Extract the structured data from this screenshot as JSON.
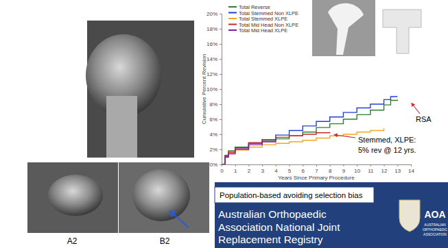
{
  "chart_data": {
    "type": "line",
    "x_label": "Years Since Primary Procedure",
    "y_label": "Cumulative Percent Revision",
    "x": [
      0,
      0.25,
      0.5,
      1,
      2,
      3,
      4,
      5,
      6,
      7,
      8,
      9,
      10,
      11,
      12,
      12.5,
      13
    ],
    "series": [
      {
        "name": "Total Reverse",
        "color": "#2e7d32",
        "values": [
          0,
          1.2,
          1.8,
          2.3,
          2.8,
          3.1,
          3.4,
          3.8,
          4.3,
          4.9,
          5.4,
          6.0,
          6.6,
          7.2,
          7.9,
          8.5,
          8.6
        ]
      },
      {
        "name": "Total Stemmed Non XLPE",
        "color": "#1f3fd6",
        "values": [
          0,
          1.0,
          1.6,
          2.2,
          2.8,
          3.3,
          3.9,
          4.5,
          5.1,
          5.7,
          6.3,
          6.9,
          7.5,
          8.0,
          8.6,
          9.0,
          9.0
        ]
      },
      {
        "name": "Total Stemmed XLPE",
        "color": "#f5a623",
        "values": [
          0,
          0.9,
          1.5,
          1.9,
          2.3,
          2.6,
          2.8,
          3.0,
          3.2,
          3.5,
          3.8,
          4.0,
          4.3,
          4.5,
          4.8,
          null,
          null
        ]
      },
      {
        "name": "Total Mid Head Non XLPE",
        "color": "#c62828",
        "values": [
          0,
          1.1,
          1.6,
          2.2,
          2.9,
          3.3,
          3.6,
          3.8,
          4.0,
          4.2,
          4.3,
          null,
          null,
          null,
          null,
          null,
          null
        ]
      },
      {
        "name": "Total Mid Head XLPE",
        "color": "#7b1fa2",
        "values": [
          0,
          1.0,
          1.4,
          2.0,
          2.6,
          3.0,
          3.4,
          null,
          null,
          null,
          null,
          null,
          null,
          null,
          null,
          null,
          null
        ]
      }
    ],
    "xlim": [
      0,
      14
    ],
    "xticks": [
      0,
      1,
      2,
      3,
      4,
      5,
      6,
      7,
      8,
      9,
      10,
      11,
      12,
      13,
      14
    ],
    "ylim": [
      0,
      20
    ],
    "yticks": [
      {
        "value": 0,
        "label": "0%"
      },
      {
        "value": 2,
        "label": "2%"
      },
      {
        "value": 4,
        "label": "4%"
      },
      {
        "value": 6,
        "label": "6%"
      },
      {
        "value": 8,
        "label": "8%"
      },
      {
        "value": 10,
        "label": "10%"
      },
      {
        "value": 12,
        "label": "12%"
      },
      {
        "value": 14,
        "label": "14%"
      },
      {
        "value": 16,
        "label": "16%"
      },
      {
        "value": 18,
        "label": "18%"
      },
      {
        "value": 20,
        "label": "20%"
      }
    ],
    "grid": false,
    "legend": "upper left",
    "annotations": [
      "RSA",
      "Stemmed, XLPE:",
      "5% rev @ 12 yrs."
    ]
  },
  "images": {
    "labels": [
      "A2",
      "B2"
    ]
  },
  "banner": {
    "note": "Population-based avoiding selection bias",
    "lines": [
      "Australian Orthopaedic",
      "Association National Joint",
      "Replacement Registry"
    ],
    "logo": "AOA",
    "logo_lines": [
      "AUSTRALIAN",
      "ORTHOPAEDIC",
      "ASSOCIATION"
    ]
  }
}
